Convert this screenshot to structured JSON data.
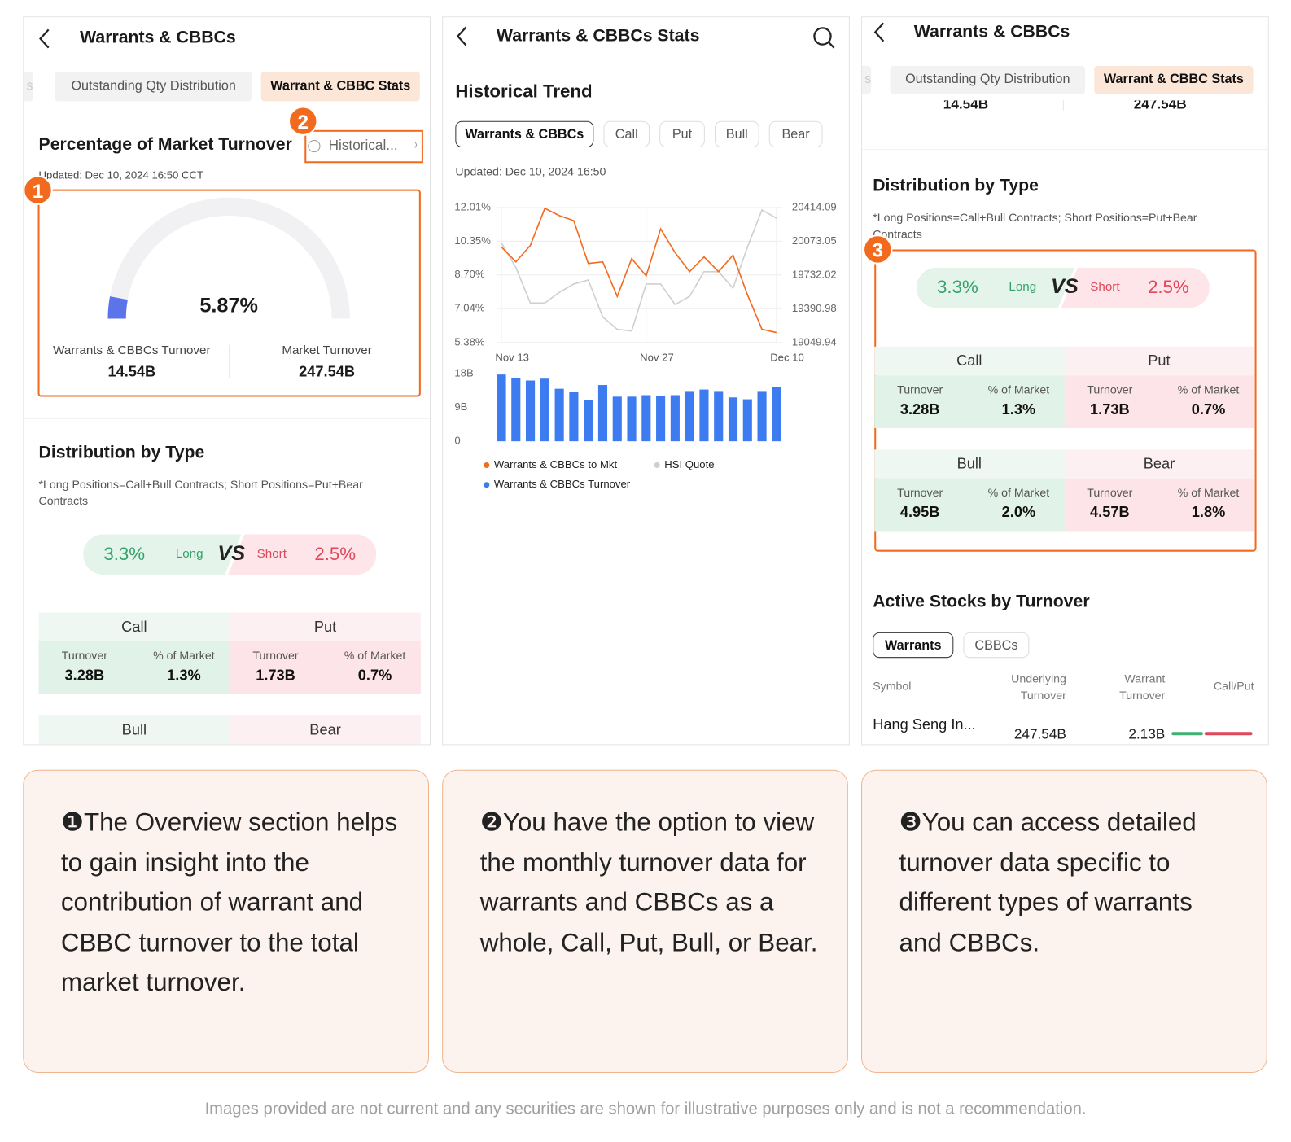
{
  "panels": [
    {
      "title": "Warrants & CBBCs",
      "tabs": [
        "s",
        "Outstanding Qty Distribution",
        "Warrant & CBBC Stats"
      ],
      "turnover": {
        "title": "Percentage of Market Turnover",
        "link": "Historical...",
        "updated": "Updated: Dec 10, 2024 16:50 CCT",
        "gauge": {
          "value": 5.87,
          "label": "5.87%",
          "range": [
            0,
            100
          ]
        },
        "items": [
          {
            "label": "Warrants & CBBCs Turnover",
            "value": "14.54B"
          },
          {
            "label": "Market Turnover",
            "value": "247.54B"
          }
        ]
      },
      "distribution": {
        "title": "Distribution by Type",
        "note": "*Long Positions=Call+Bull Contracts; Short Positions=Put+Bear Contracts",
        "long": "3.3%",
        "long_label": "Long",
        "vs": "VS",
        "short_label": "Short",
        "short": "2.5%",
        "groups": [
          {
            "name": "Call",
            "columns": [
              {
                "label": "Turnover",
                "value": "3.28B"
              },
              {
                "label": "% of Market",
                "value": "1.3%"
              }
            ]
          },
          {
            "name": "Put",
            "columns": [
              {
                "label": "Turnover",
                "value": "1.73B"
              },
              {
                "label": "% of Market",
                "value": "0.7%"
              }
            ]
          },
          {
            "name": "Bull"
          },
          {
            "name": "Bear"
          }
        ]
      }
    },
    {
      "title": "Warrants & CBBCs Stats",
      "section": "Historical Trend",
      "filters": [
        "Warrants & CBBCs",
        "Call",
        "Put",
        "Bull",
        "Bear"
      ],
      "updated": "Updated: Dec 10, 2024 16:50"
    },
    {
      "title": "Warrants & CBBCs",
      "tabs": [
        "s",
        "Outstanding Qty Distribution",
        "Warrant & CBBC Stats"
      ],
      "partial_values": [
        "14.54B",
        "247.54B"
      ],
      "distribution": {
        "title": "Distribution by Type",
        "note": "*Long Positions=Call+Bull Contracts; Short Positions=Put+Bear Contracts",
        "long": "3.3%",
        "long_label": "Long",
        "vs": "VS",
        "short_label": "Short",
        "short": "2.5%",
        "groups": [
          {
            "name": "Call",
            "columns": [
              {
                "label": "Turnover",
                "value": "3.28B"
              },
              {
                "label": "% of Market",
                "value": "1.3%"
              }
            ]
          },
          {
            "name": "Put",
            "columns": [
              {
                "label": "Turnover",
                "value": "1.73B"
              },
              {
                "label": "% of Market",
                "value": "0.7%"
              }
            ]
          },
          {
            "name": "Bull",
            "columns": [
              {
                "label": "Turnover",
                "value": "4.95B"
              },
              {
                "label": "% of Market",
                "value": "2.0%"
              }
            ]
          },
          {
            "name": "Bear",
            "columns": [
              {
                "label": "Turnover",
                "value": "4.57B"
              },
              {
                "label": "% of Market",
                "value": "1.8%"
              }
            ]
          }
        ]
      },
      "active_stocks": {
        "title": "Active Stocks by Turnover",
        "tabs": [
          "Warrants",
          "CBBCs"
        ],
        "headers": [
          "Symbol",
          "Underlying Turnover",
          "Warrant Turnover",
          "Call/Put"
        ],
        "rows": [
          [
            "Hang Seng In...",
            "247.54B",
            "2.13B"
          ]
        ]
      }
    }
  ],
  "badges": [
    "1",
    "2",
    "3"
  ],
  "chart_data": [
    {
      "type": "line",
      "categories": [
        "Nov 13",
        null,
        null,
        null,
        null,
        null,
        null,
        null,
        null,
        null,
        "Nov 27",
        null,
        null,
        null,
        null,
        null,
        null,
        null,
        null,
        "Dec 10"
      ],
      "series": [
        {
          "name": "Warrants & CBBCs to Mkt",
          "color": "#f26a1e",
          "values": [
            10.07,
            9.34,
            10.15,
            11.97,
            11.61,
            11.36,
            9.26,
            9.34,
            7.64,
            9.5,
            8.65,
            10.96,
            9.79,
            8.86,
            9.58,
            8.86,
            9.67,
            7.72,
            6.03,
            5.87
          ]
        },
        {
          "name": "HSI Quote",
          "color": "#cfcfcf",
          "axis": "y2",
          "values": [
            20056,
            19807,
            19449,
            19449,
            19557,
            19641,
            19682,
            19308,
            19183,
            19166,
            19641,
            19641,
            19433,
            19516,
            19765,
            19765,
            19599,
            20015,
            20389,
            20306
          ]
        }
      ],
      "ylim": [
        5.38,
        12.01
      ],
      "yticks": [
        {
          "value": 12.01,
          "label": "12.01%"
        },
        {
          "value": 10.35,
          "label": "10.35%"
        },
        {
          "value": 8.7,
          "label": "8.70%"
        },
        {
          "value": 7.04,
          "label": "7.04%"
        },
        {
          "value": 5.38,
          "label": "5.38%"
        }
      ],
      "y2lim": [
        19049.94,
        20414.09
      ],
      "y2ticks": [
        20414.09,
        20073.05,
        19732.02,
        19390.98,
        19049.94
      ],
      "grid": true
    },
    {
      "type": "bar",
      "series": [
        {
          "name": "Warrants & CBBCs Turnover",
          "color": "#3d7cf0",
          "values": [
            17.8,
            16.9,
            16.2,
            16.7,
            14.0,
            13.2,
            11.0,
            15.0,
            11.9,
            11.9,
            12.3,
            12.1,
            12.3,
            13.4,
            13.8,
            13.4,
            11.7,
            11.2,
            13.4,
            14.54
          ]
        }
      ],
      "ylim": [
        0,
        18
      ],
      "yticks": [
        {
          "value": 18,
          "label": "18B"
        },
        {
          "value": 9,
          "label": "9B"
        },
        0
      ]
    }
  ],
  "captions": [
    "❶The Overview section helps to gain insight into the contribution of warrant and CBBC turnover to the total market turnover.",
    "❷You have the option to view the monthly turnover data for warrants and CBBCs as a whole, Call, Put, Bull, or Bear.",
    "❸You can access detailed turnover data specific to different types of warrants and CBBCs."
  ],
  "disclaimer": "Images provided are not current and any securities are shown for illustrative purposes only and is not a recommendation."
}
